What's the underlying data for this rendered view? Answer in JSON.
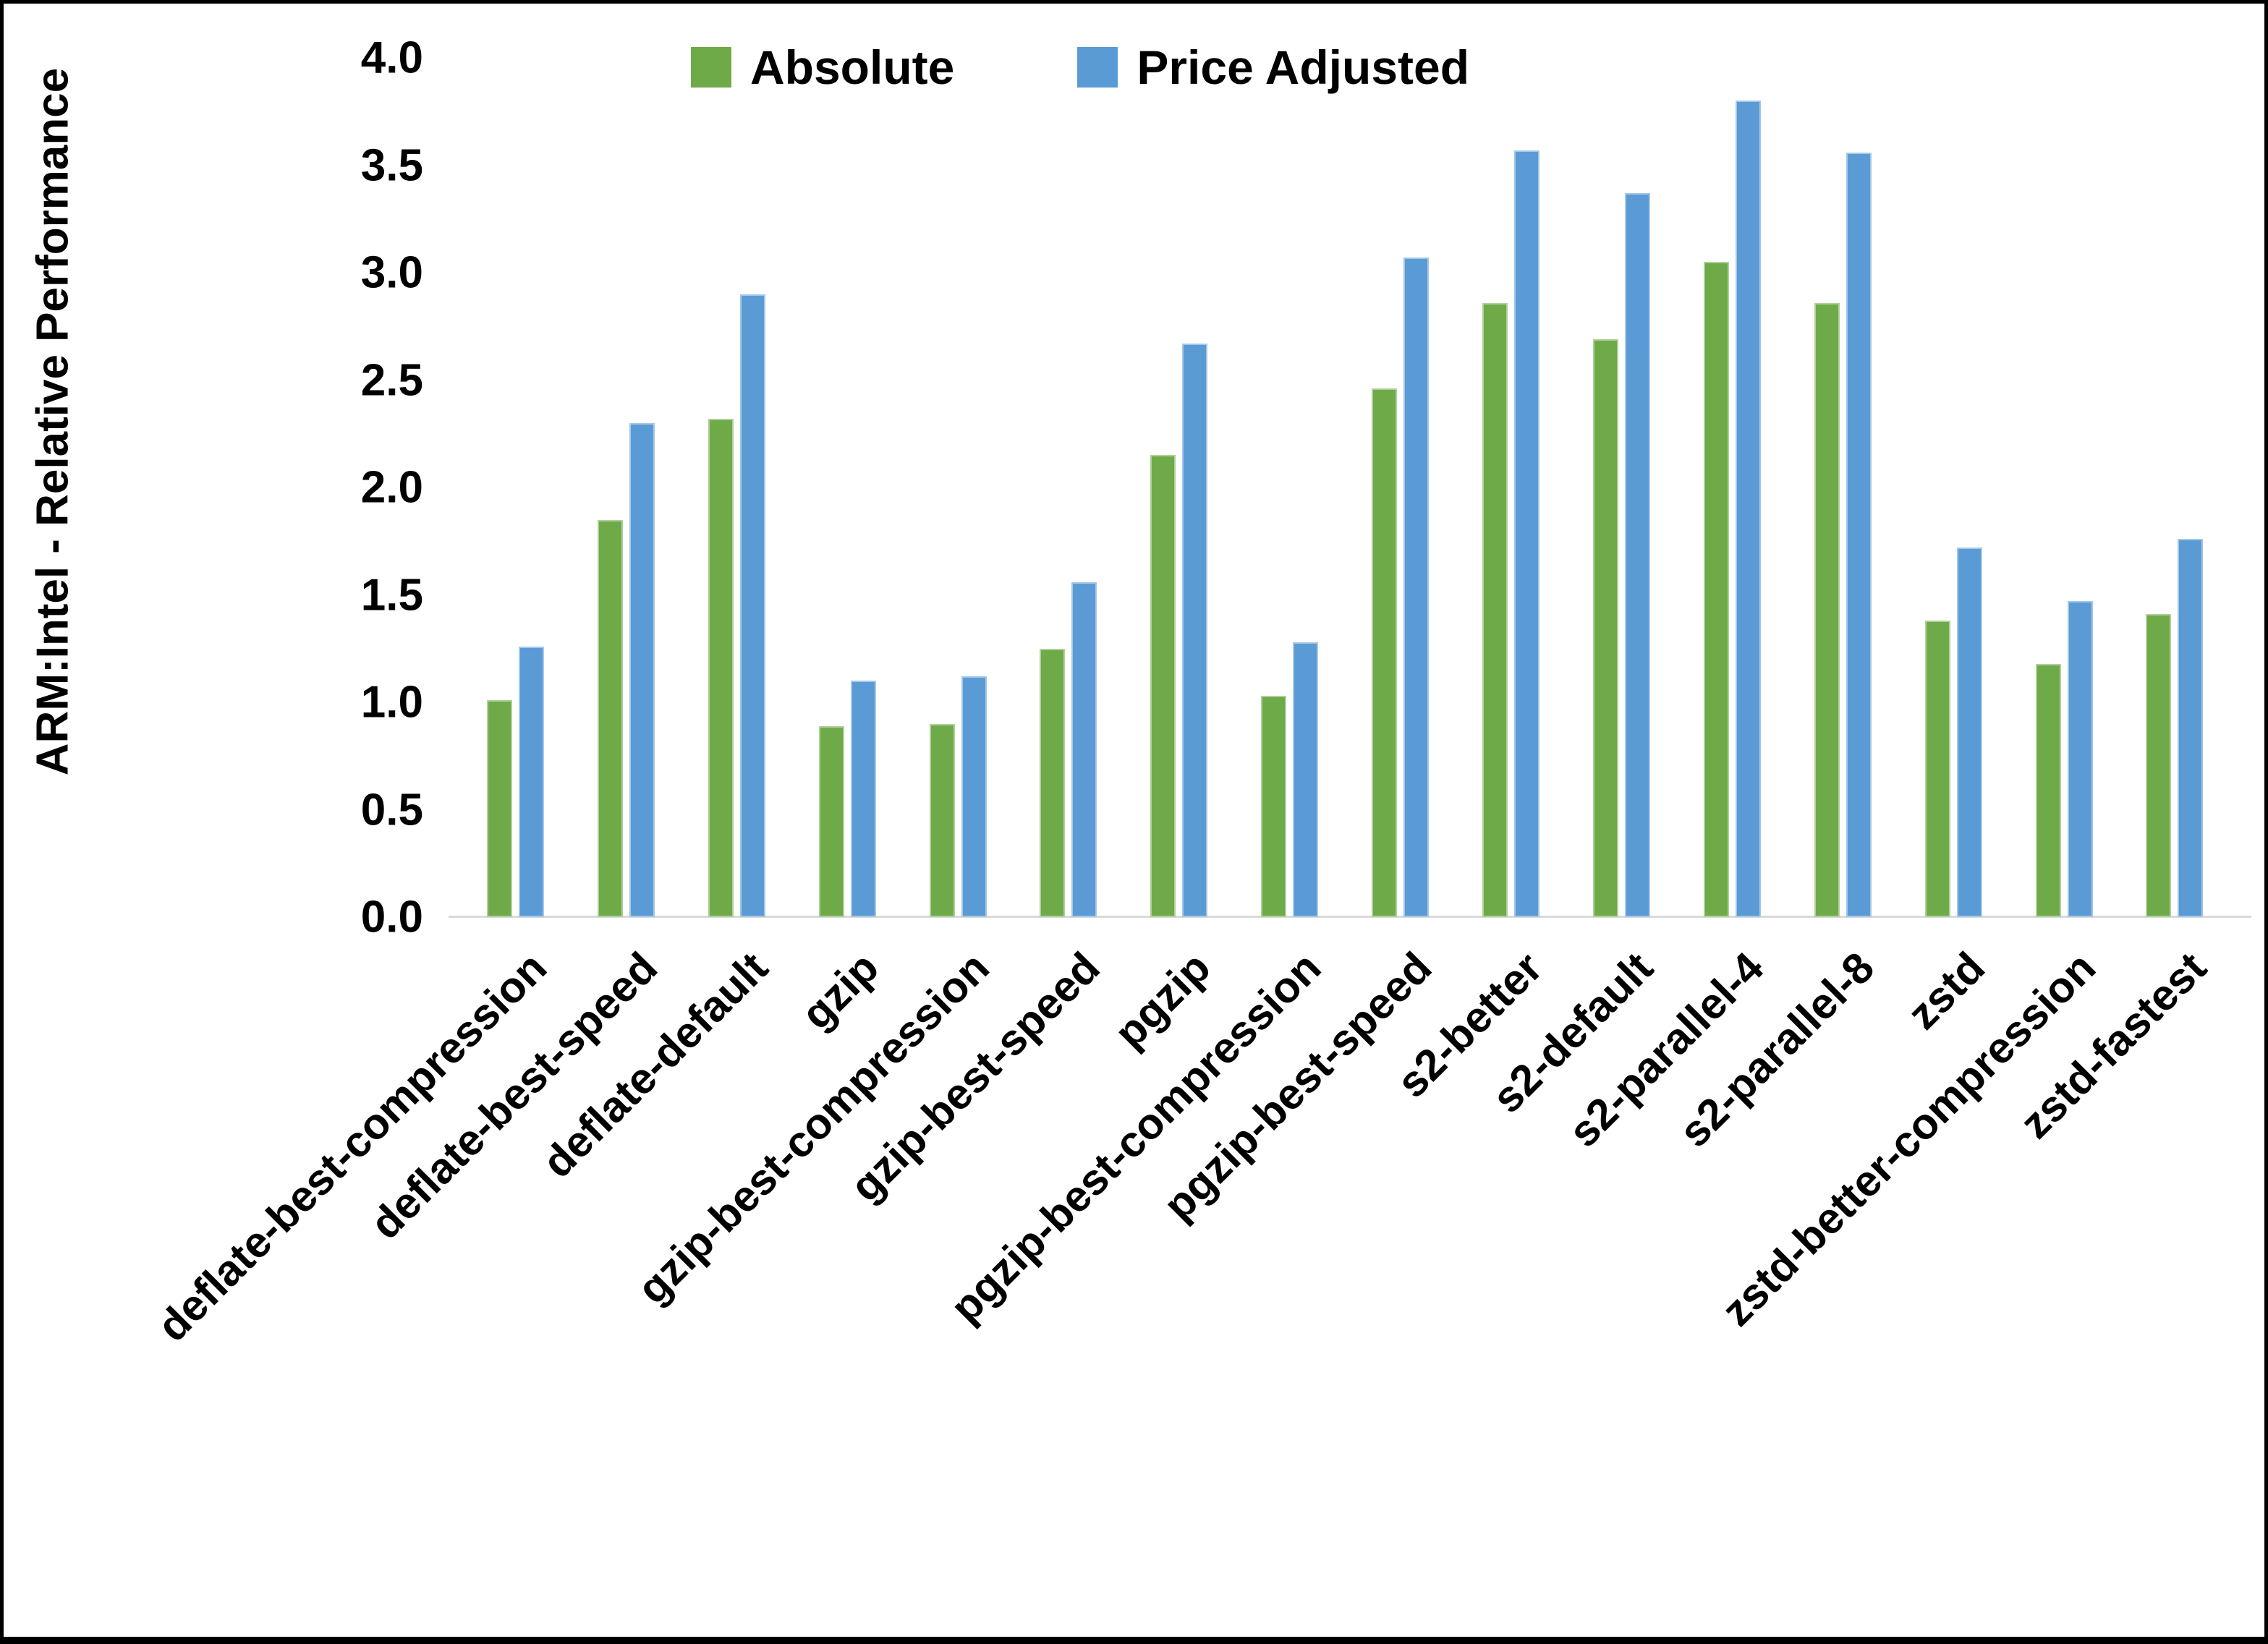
{
  "chart_data": {
    "type": "bar",
    "title": "",
    "xlabel": "",
    "ylabel": "ARM:Intel - Relative Performance",
    "ylim": [
      0.0,
      4.0
    ],
    "ytick_step": 0.5,
    "yticks": [
      "0.0",
      "0.5",
      "1.0",
      "1.5",
      "2.0",
      "2.5",
      "3.0",
      "3.5",
      "4.0"
    ],
    "grid": false,
    "legend_position": "top-center",
    "background": "#ffffff",
    "axis_line_color": "#d9d9d9",
    "categories": [
      "deflate-best-compression",
      "deflate-best-speed",
      "deflate-default",
      "gzip",
      "gzip-best-compression",
      "gzip-best-speed",
      "pgzip",
      "pgzip-best-compression",
      "pgzip-best-speed",
      "s2-better",
      "s2-default",
      "s2-parallel-4",
      "s2-parallel-8",
      "zstd",
      "zstd-better-compression",
      "zstd-fastest"
    ],
    "series": [
      {
        "name": "Absolute",
        "color": "#6FAA49",
        "values": [
          1.01,
          1.85,
          2.32,
          0.89,
          0.9,
          1.25,
          2.15,
          1.03,
          2.46,
          2.86,
          2.69,
          3.05,
          2.86,
          1.38,
          1.18,
          1.41
        ]
      },
      {
        "name": "Price Adjusted",
        "color": "#5B9BD5",
        "values": [
          1.26,
          2.3,
          2.9,
          1.1,
          1.12,
          1.56,
          2.67,
          1.28,
          3.07,
          3.57,
          3.37,
          3.8,
          3.56,
          1.72,
          1.47,
          1.76
        ]
      }
    ]
  }
}
